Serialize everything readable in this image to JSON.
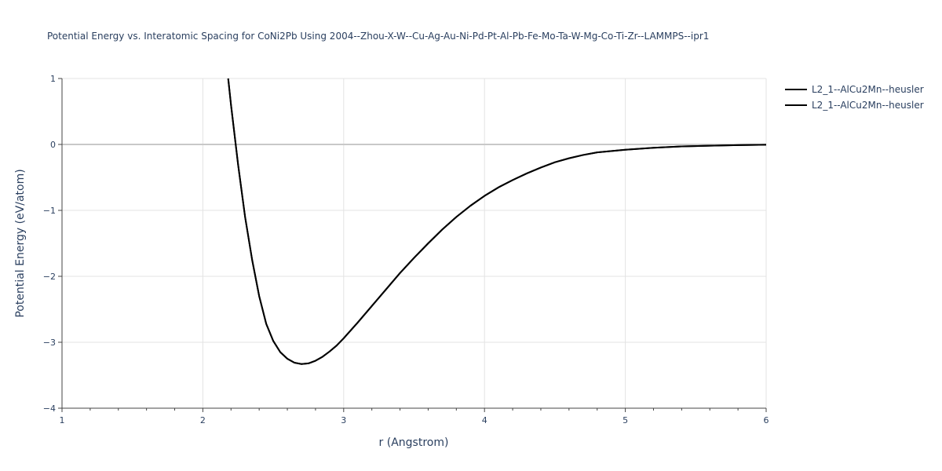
{
  "chart_data": {
    "type": "line",
    "title": "Potential Energy vs. Interatomic Spacing for CoNi2Pb Using 2004--Zhou-X-W--Cu-Ag-Au-Ni-Pd-Pt-Al-Pb-Fe-Mo-Ta-W-Mg-Co-Ti-Zr--LAMMPS--ipr1",
    "xlabel": "r (Angstrom)",
    "ylabel": "Potential Energy (eV/atom)",
    "xlim": [
      1,
      6
    ],
    "ylim": [
      -4,
      1
    ],
    "x_ticks": [
      "1",
      "2",
      "3",
      "4",
      "5",
      "6"
    ],
    "y_ticks": [
      "1",
      "0",
      "−1",
      "−2",
      "−3",
      "−4"
    ],
    "grid": true,
    "legend_position": "top-right",
    "line_color": "#000000",
    "series": [
      {
        "name": "L2_1--AlCu2Mn--heusler",
        "x": [
          2.18,
          2.2,
          2.25,
          2.3,
          2.35,
          2.4,
          2.45,
          2.5,
          2.55,
          2.6,
          2.65,
          2.7,
          2.75,
          2.8,
          2.85,
          2.9,
          2.95,
          3.0,
          3.1,
          3.2,
          3.3,
          3.4,
          3.5,
          3.6,
          3.7,
          3.8,
          3.9,
          4.0,
          4.1,
          4.2,
          4.3,
          4.4,
          4.5,
          4.6,
          4.7,
          4.8,
          5.0,
          5.2,
          5.4,
          5.6,
          5.8,
          6.0
        ],
        "y": [
          1.0,
          0.6,
          -0.3,
          -1.1,
          -1.75,
          -2.3,
          -2.72,
          -2.98,
          -3.15,
          -3.25,
          -3.31,
          -3.33,
          -3.32,
          -3.28,
          -3.22,
          -3.14,
          -3.05,
          -2.94,
          -2.7,
          -2.45,
          -2.2,
          -1.95,
          -1.72,
          -1.5,
          -1.29,
          -1.1,
          -0.93,
          -0.78,
          -0.65,
          -0.54,
          -0.44,
          -0.35,
          -0.27,
          -0.21,
          -0.16,
          -0.12,
          -0.08,
          -0.05,
          -0.03,
          -0.02,
          -0.01,
          -0.005
        ]
      },
      {
        "name": "L2_1--AlCu2Mn--heusler",
        "x": [
          2.18,
          2.2,
          2.25,
          2.3,
          2.35,
          2.4,
          2.45,
          2.5,
          2.55,
          2.6,
          2.65,
          2.7,
          2.75,
          2.8,
          2.85,
          2.9,
          2.95,
          3.0,
          3.1,
          3.2,
          3.3,
          3.4,
          3.5,
          3.6,
          3.7,
          3.8,
          3.9,
          4.0,
          4.1,
          4.2,
          4.3,
          4.4,
          4.5,
          4.6,
          4.7,
          4.8,
          5.0,
          5.2,
          5.4,
          5.6,
          5.8,
          6.0
        ],
        "y": [
          1.0,
          0.6,
          -0.3,
          -1.1,
          -1.75,
          -2.3,
          -2.72,
          -2.98,
          -3.15,
          -3.25,
          -3.31,
          -3.33,
          -3.32,
          -3.28,
          -3.22,
          -3.14,
          -3.05,
          -2.94,
          -2.7,
          -2.45,
          -2.2,
          -1.95,
          -1.72,
          -1.5,
          -1.29,
          -1.1,
          -0.93,
          -0.78,
          -0.65,
          -0.54,
          -0.44,
          -0.35,
          -0.27,
          -0.21,
          -0.16,
          -0.12,
          -0.08,
          -0.05,
          -0.03,
          -0.02,
          -0.01,
          -0.005
        ]
      }
    ]
  }
}
